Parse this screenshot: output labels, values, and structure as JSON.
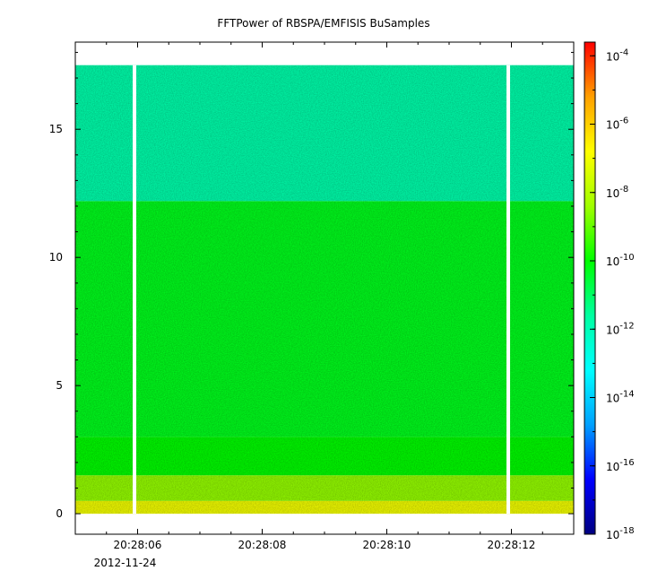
{
  "chart_data": {
    "type": "heatmap",
    "title": "FFTPower of RBSPA/EMFISIS  BuSamples",
    "xlabel": "",
    "ylabel": "",
    "x_ticks": [
      {
        "label": "20:28:06",
        "sub": "2012-11-24",
        "t": 6
      },
      {
        "label": "20:28:08",
        "sub": "",
        "t": 8
      },
      {
        "label": "20:28:10",
        "sub": "",
        "t": 10
      },
      {
        "label": "20:28:12",
        "sub": "",
        "t": 12
      }
    ],
    "x_range_seconds": [
      5.0,
      13.0
    ],
    "ylim": [
      -0.8,
      18.4
    ],
    "y_ticks": [
      0,
      5,
      10,
      15
    ],
    "data_gaps_seconds": [
      5.95,
      11.95
    ],
    "data_y_range": [
      0,
      17.5
    ],
    "bands": [
      {
        "y_from": 0.0,
        "y_to": 0.5,
        "log10_power": -7.0
      },
      {
        "y_from": 0.5,
        "y_to": 1.5,
        "log10_power": -8.5
      },
      {
        "y_from": 1.5,
        "y_to": 3.0,
        "log10_power": -10.0
      },
      {
        "y_from": 3.0,
        "y_to": 12.2,
        "log10_power": -10.3
      },
      {
        "y_from": 12.2,
        "y_to": 17.5,
        "log10_power": -11.8
      }
    ],
    "colorbar": {
      "scale": "log",
      "range_exponent": [
        -18,
        -3.6
      ],
      "ticks": [
        -18,
        -16,
        -14,
        -12,
        -10,
        -8,
        -6,
        -4
      ],
      "colors": [
        "#000080",
        "#0000ff",
        "#00a0ff",
        "#00ffff",
        "#00ffa0",
        "#00ff00",
        "#a0ff00",
        "#ffff00",
        "#ffa000",
        "#ff0000"
      ]
    }
  }
}
